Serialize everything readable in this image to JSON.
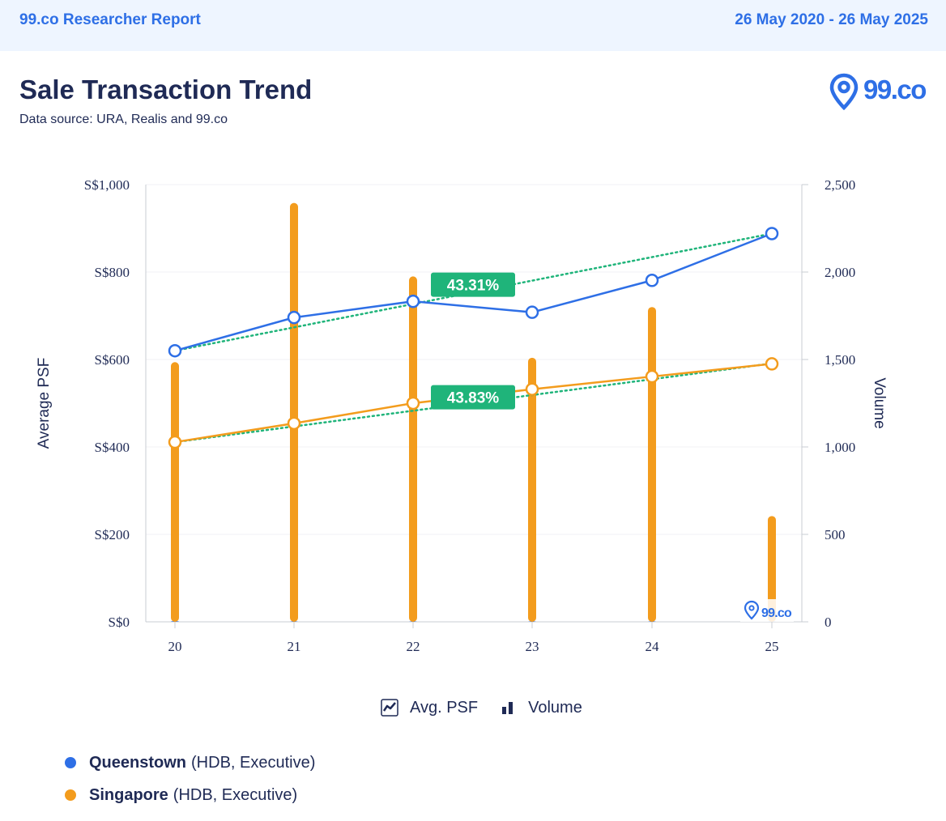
{
  "header": {
    "report_label": "99.co Researcher Report",
    "date_range": "26 May 2020 - 26 May 2025"
  },
  "title": "Sale Transaction Trend",
  "subtitle": "Data source: URA, Realis and 99.co",
  "logo_text": "99.co",
  "colors": {
    "queenstown": "#2e6fe6",
    "singapore": "#f39c1d",
    "trend": "#1fb47a",
    "badge": "#1fb47a",
    "axis": "#c9ccd3",
    "text": "#1f2a55",
    "brand": "#2e6fe6"
  },
  "legend_toggle": [
    {
      "label": "Avg. PSF",
      "icon": "line-chart-icon"
    },
    {
      "label": "Volume",
      "icon": "bar-chart-icon"
    }
  ],
  "series_legend": [
    {
      "name": "Queenstown",
      "detail": "(HDB, Executive)",
      "color": "#2e6fe6"
    },
    {
      "name": "Singapore",
      "detail": "(HDB, Executive)",
      "color": "#f39c1d"
    }
  ],
  "chart_data": {
    "type": "line",
    "x": [
      "20",
      "21",
      "22",
      "23",
      "24",
      "25"
    ],
    "ylabel": "Average PSF",
    "y2label": "Volume",
    "ylim": [
      0,
      1000
    ],
    "y2lim": [
      0,
      2500
    ],
    "y_ticks": [
      "S$0",
      "S$200",
      "S$400",
      "S$600",
      "S$800",
      "S$1,000"
    ],
    "y2_ticks": [
      "0",
      "500",
      "1,000",
      "1,500",
      "2,000",
      "2,500"
    ],
    "grid": true,
    "series": [
      {
        "name": "Queenstown",
        "axis": "left",
        "type": "line",
        "values": [
          620,
          696,
          733,
          708,
          781,
          888
        ]
      },
      {
        "name": "Singapore",
        "axis": "left",
        "type": "line",
        "values": [
          411,
          454,
          500,
          532,
          561,
          590
        ]
      },
      {
        "name": "Queenstown",
        "axis": "right",
        "type": "bar",
        "values": [
          4,
          3,
          3,
          3,
          3,
          3
        ]
      },
      {
        "name": "Singapore",
        "axis": "right",
        "type": "bar",
        "values": [
          1485,
          2395,
          1975,
          1510,
          1800,
          605
        ]
      }
    ],
    "trendlines": [
      {
        "series": "Queenstown",
        "from": 620,
        "to": 888,
        "label": "43.31%"
      },
      {
        "series": "Singapore",
        "from": 411,
        "to": 591,
        "label": "43.83%"
      }
    ]
  }
}
